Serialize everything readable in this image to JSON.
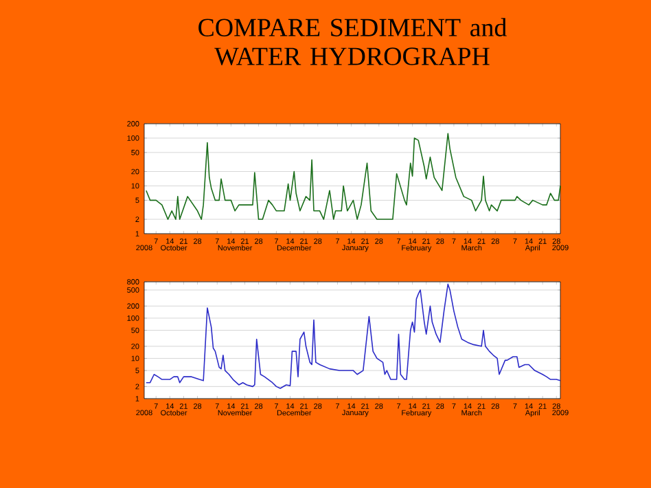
{
  "chart_data": [
    {
      "type": "line",
      "title": "COMPARE SEDIMENT and WATER HYDROGRAPH",
      "log": true,
      "grid": "y",
      "xlim": [
        "2008-10-01",
        "2009-04-30"
      ],
      "ylim": [
        1,
        200
      ],
      "yticks": [
        1,
        2,
        5,
        10,
        20,
        50,
        100,
        200
      ],
      "xticks": [
        {
          "value": "2008-10-07",
          "label": "7"
        },
        {
          "value": "2008-10-14",
          "label": "14"
        },
        {
          "value": "2008-10-21",
          "label": "21"
        },
        {
          "value": "2008-10-28",
          "label": "28"
        },
        {
          "value": "2008-11-07",
          "label": "7"
        },
        {
          "value": "2008-11-14",
          "label": "14"
        },
        {
          "value": "2008-11-21",
          "label": "21"
        },
        {
          "value": "2008-11-28",
          "label": "28"
        },
        {
          "value": "2008-12-07",
          "label": "7"
        },
        {
          "value": "2008-12-14",
          "label": "14"
        },
        {
          "value": "2008-12-21",
          "label": "21"
        },
        {
          "value": "2008-12-28",
          "label": "28"
        },
        {
          "value": "2009-01-07",
          "label": "7"
        },
        {
          "value": "2009-01-14",
          "label": "14"
        },
        {
          "value": "2009-01-21",
          "label": "21"
        },
        {
          "value": "2009-01-28",
          "label": "28"
        },
        {
          "value": "2009-02-07",
          "label": "7"
        },
        {
          "value": "2009-02-14",
          "label": "14"
        },
        {
          "value": "2009-02-21",
          "label": "21"
        },
        {
          "value": "2009-02-28",
          "label": "28"
        },
        {
          "value": "2009-03-07",
          "label": "7"
        },
        {
          "value": "2009-03-14",
          "label": "14"
        },
        {
          "value": "2009-03-21",
          "label": "21"
        },
        {
          "value": "2009-03-28",
          "label": "28"
        },
        {
          "value": "2009-04-07",
          "label": "7"
        },
        {
          "value": "2009-04-14",
          "label": "14"
        },
        {
          "value": "2009-04-21",
          "label": "21"
        },
        {
          "value": "2009-04-28",
          "label": "28"
        }
      ],
      "annotations": [
        "2008",
        "October",
        "November",
        "December",
        "January",
        "February",
        "March",
        "April",
        "2009"
      ],
      "series": [
        {
          "color": "#1a6e1a",
          "x": [
            "2008-10-02",
            "2008-10-04",
            "2008-10-07",
            "2008-10-10",
            "2008-10-13",
            "2008-10-15",
            "2008-10-17",
            "2008-10-18",
            "2008-10-19",
            "2008-10-23",
            "2008-10-28",
            "2008-10-30",
            "2008-10-31",
            "2008-11-02",
            "2008-11-03",
            "2008-11-04",
            "2008-11-06",
            "2008-11-08",
            "2008-11-09",
            "2008-11-11",
            "2008-11-14",
            "2008-11-16",
            "2008-11-18",
            "2008-11-25",
            "2008-11-26",
            "2008-11-28",
            "2008-11-30",
            "2008-12-03",
            "2008-12-05",
            "2008-12-07",
            "2008-12-11",
            "2008-12-13",
            "2008-12-14",
            "2008-12-16",
            "2008-12-17",
            "2008-12-19",
            "2008-12-22",
            "2008-12-24",
            "2008-12-25",
            "2008-12-26",
            "2008-12-29",
            "2008-12-31",
            "2009-01-03",
            "2009-01-05",
            "2009-01-06",
            "2009-01-09",
            "2009-01-10",
            "2009-01-12",
            "2009-01-15",
            "2009-01-17",
            "2009-01-19",
            "2009-01-22",
            "2009-01-24",
            "2009-01-27",
            "2009-02-04",
            "2009-02-06",
            "2009-02-10",
            "2009-02-11",
            "2009-02-13",
            "2009-02-14",
            "2009-02-15",
            "2009-02-17",
            "2009-02-20",
            "2009-02-21",
            "2009-02-23",
            "2009-02-25",
            "2009-03-01",
            "2009-03-04",
            "2009-03-05",
            "2009-03-08",
            "2009-03-12",
            "2009-03-16",
            "2009-03-18",
            "2009-03-21",
            "2009-03-22",
            "2009-03-23",
            "2009-03-25",
            "2009-03-26",
            "2009-03-29",
            "2009-03-31",
            "2009-04-07",
            "2009-04-08",
            "2009-04-10",
            "2009-04-14",
            "2009-04-16",
            "2009-04-21",
            "2009-04-23",
            "2009-04-25",
            "2009-04-27",
            "2009-04-29",
            "2009-04-30"
          ],
          "values": [
            8,
            5,
            5,
            4,
            2,
            3,
            2,
            6,
            2,
            6,
            3,
            2,
            4,
            80,
            15,
            9,
            5,
            5,
            14,
            5,
            5,
            3,
            4,
            4,
            19,
            2,
            2,
            5,
            4,
            3,
            3,
            11,
            5,
            20,
            7,
            3,
            6,
            5,
            35,
            3,
            3,
            2,
            8,
            2,
            3,
            3,
            10,
            3,
            5,
            2,
            4,
            30,
            3,
            2,
            2,
            18,
            5,
            4,
            30,
            16,
            100,
            90,
            25,
            14,
            40,
            15,
            8,
            125,
            60,
            15,
            6,
            5,
            3,
            5,
            16,
            5,
            3,
            4,
            3,
            5,
            5,
            6,
            5,
            4,
            5,
            4,
            4,
            7,
            5,
            5,
            10
          ]
        }
      ]
    },
    {
      "type": "line",
      "log": true,
      "grid": "y",
      "xlim": [
        "2008-10-01",
        "2009-04-30"
      ],
      "ylim": [
        1,
        800
      ],
      "yticks": [
        1,
        2,
        5,
        10,
        20,
        50,
        100,
        200,
        500,
        800
      ],
      "xticks": [
        {
          "value": "2008-10-07",
          "label": "7"
        },
        {
          "value": "2008-10-14",
          "label": "14"
        },
        {
          "value": "2008-10-21",
          "label": "21"
        },
        {
          "value": "2008-10-28",
          "label": "28"
        },
        {
          "value": "2008-11-07",
          "label": "7"
        },
        {
          "value": "2008-11-14",
          "label": "14"
        },
        {
          "value": "2008-11-21",
          "label": "21"
        },
        {
          "value": "2008-11-28",
          "label": "28"
        },
        {
          "value": "2008-12-07",
          "label": "7"
        },
        {
          "value": "2008-12-14",
          "label": "14"
        },
        {
          "value": "2008-12-21",
          "label": "21"
        },
        {
          "value": "2008-12-28",
          "label": "28"
        },
        {
          "value": "2009-01-07",
          "label": "7"
        },
        {
          "value": "2009-01-14",
          "label": "14"
        },
        {
          "value": "2009-01-21",
          "label": "21"
        },
        {
          "value": "2009-01-28",
          "label": "28"
        },
        {
          "value": "2009-02-07",
          "label": "7"
        },
        {
          "value": "2009-02-14",
          "label": "14"
        },
        {
          "value": "2009-02-21",
          "label": "21"
        },
        {
          "value": "2009-02-28",
          "label": "28"
        },
        {
          "value": "2009-03-07",
          "label": "7"
        },
        {
          "value": "2009-03-14",
          "label": "14"
        },
        {
          "value": "2009-03-21",
          "label": "21"
        },
        {
          "value": "2009-03-28",
          "label": "28"
        },
        {
          "value": "2009-04-07",
          "label": "7"
        },
        {
          "value": "2009-04-14",
          "label": "14"
        },
        {
          "value": "2009-04-21",
          "label": "21"
        },
        {
          "value": "2009-04-28",
          "label": "28"
        }
      ],
      "annotations": [
        "2008",
        "October",
        "November",
        "December",
        "January",
        "February",
        "March",
        "April",
        "2009"
      ],
      "series": [
        {
          "color": "#2b2bc8",
          "x": [
            "2008-10-02",
            "2008-10-04",
            "2008-10-06",
            "2008-10-08",
            "2008-10-10",
            "2008-10-14",
            "2008-10-16",
            "2008-10-18",
            "2008-10-19",
            "2008-10-21",
            "2008-10-25",
            "2008-10-29",
            "2008-10-31",
            "2008-11-02",
            "2008-11-04",
            "2008-11-05",
            "2008-11-06",
            "2008-11-08",
            "2008-11-09",
            "2008-11-10",
            "2008-11-11",
            "2008-11-13",
            "2008-11-15",
            "2008-11-18",
            "2008-11-20",
            "2008-11-22",
            "2008-11-25",
            "2008-11-26",
            "2008-11-27",
            "2008-11-29",
            "2008-12-01",
            "2008-12-05",
            "2008-12-07",
            "2008-12-09",
            "2008-12-12",
            "2008-12-14",
            "2008-12-15",
            "2008-12-17",
            "2008-12-18",
            "2008-12-19",
            "2008-12-21",
            "2008-12-22",
            "2008-12-24",
            "2008-12-25",
            "2008-12-26",
            "2008-12-27",
            "2008-12-29",
            "2009-01-03",
            "2009-01-08",
            "2009-01-15",
            "2009-01-17",
            "2009-01-20",
            "2009-01-23",
            "2009-01-25",
            "2009-01-27",
            "2009-01-30",
            "2009-01-31",
            "2009-02-01",
            "2009-02-03",
            "2009-02-06",
            "2009-02-07",
            "2009-02-08",
            "2009-02-10",
            "2009-02-11",
            "2009-02-13",
            "2009-02-14",
            "2009-02-15",
            "2009-02-16",
            "2009-02-17",
            "2009-02-18",
            "2009-02-19",
            "2009-02-20",
            "2009-02-21",
            "2009-02-23",
            "2009-02-24",
            "2009-02-26",
            "2009-02-28",
            "2009-03-02",
            "2009-03-04",
            "2009-03-05",
            "2009-03-07",
            "2009-03-09",
            "2009-03-11",
            "2009-03-14",
            "2009-03-17",
            "2009-03-21",
            "2009-03-22",
            "2009-03-23",
            "2009-03-25",
            "2009-03-27",
            "2009-03-29",
            "2009-03-30",
            "2009-04-02",
            "2009-04-03",
            "2009-04-06",
            "2009-04-08",
            "2009-04-09",
            "2009-04-12",
            "2009-04-14",
            "2009-04-17",
            "2009-04-21",
            "2009-04-23",
            "2009-04-25",
            "2009-04-28",
            "2009-04-30"
          ],
          "values": [
            2.5,
            2.5,
            4,
            3.5,
            3,
            3,
            3.5,
            3.5,
            2.5,
            3.5,
            3.5,
            3,
            2.8,
            180,
            60,
            18,
            15,
            6,
            5.5,
            12,
            5,
            4,
            3,
            2.2,
            2.5,
            2.2,
            2,
            2.2,
            30,
            4,
            3.5,
            2.5,
            2,
            1.8,
            2.2,
            2.1,
            15,
            15,
            3.5,
            30,
            45,
            20,
            8,
            7,
            90,
            8,
            7,
            5.5,
            5,
            5,
            4,
            5,
            110,
            15,
            10,
            8,
            4,
            5,
            3,
            3,
            40,
            4,
            3,
            3,
            50,
            80,
            45,
            300,
            400,
            500,
            200,
            80,
            40,
            200,
            80,
            40,
            25,
            150,
            700,
            500,
            150,
            60,
            30,
            25,
            22,
            20,
            50,
            20,
            15,
            12,
            10,
            4,
            9,
            9,
            11,
            11,
            6,
            7,
            7,
            5,
            4,
            3.5,
            3,
            3,
            2.8
          ]
        }
      ]
    }
  ]
}
